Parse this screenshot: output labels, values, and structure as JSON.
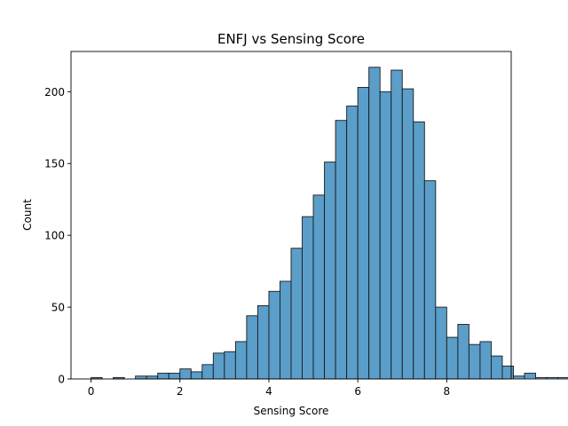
{
  "chart_data": {
    "type": "bar",
    "title": "ENFJ vs Sensing Score",
    "xlabel": "Sensing Score",
    "ylabel": "Count",
    "xlim": [
      -0.45,
      9.45
    ],
    "ylim": [
      0,
      228
    ],
    "xticks": [
      0,
      2,
      4,
      6,
      8
    ],
    "yticks": [
      0,
      50,
      100,
      150,
      200
    ],
    "bin_start": 0.0,
    "bin_width": 0.25,
    "counts": [
      1,
      0,
      1,
      0,
      2,
      2,
      4,
      4,
      7,
      5,
      10,
      18,
      19,
      26,
      44,
      51,
      61,
      68,
      91,
      113,
      128,
      151,
      180,
      190,
      203,
      217,
      200,
      215,
      202,
      179,
      138,
      50,
      29,
      38,
      24,
      26,
      16,
      9,
      2,
      4,
      1,
      1,
      1,
      2,
      1
    ],
    "bar_color": "#5a9ec9",
    "grid": false
  }
}
